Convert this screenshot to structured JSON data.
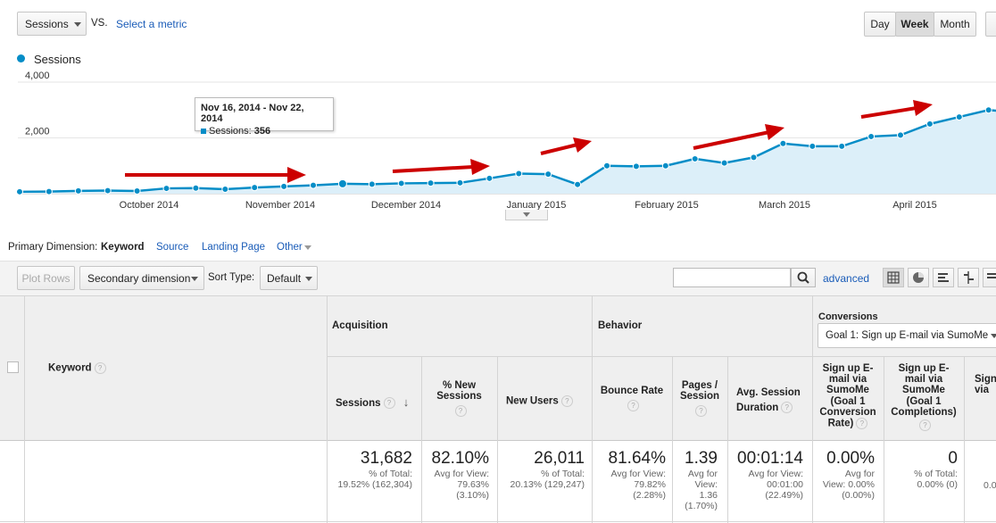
{
  "toolbar": {
    "metric_select": "Sessions",
    "vs_label": "VS.",
    "select_metric_link": "Select a metric",
    "period_buttons": [
      "Day",
      "Week",
      "Month"
    ],
    "active_period": "Week"
  },
  "legend": {
    "series_name": "Sessions",
    "color": "#058dc7"
  },
  "tooltip": {
    "range": "Nov 16, 2014 - Nov 22, 2014",
    "label": "Sessions:",
    "value": "356"
  },
  "chart_data": {
    "type": "area",
    "series": [
      {
        "name": "Sessions",
        "values": [
          70,
          75,
          100,
          110,
          95,
          190,
          200,
          160,
          220,
          260,
          300,
          356,
          340,
          370,
          380,
          390,
          550,
          720,
          700,
          330,
          1000,
          980,
          1000,
          1250,
          1100,
          1300,
          1800,
          1700,
          1700,
          2050,
          2100,
          2500,
          2750,
          3000,
          2900
        ]
      }
    ],
    "yticks": [
      "4,000",
      "2,000"
    ],
    "ylim": [
      0,
      4000
    ],
    "xtick_labels": [
      "October 2014",
      "November 2014",
      "December 2014",
      "January 2015",
      "February 2015",
      "March 2015",
      "April 2015"
    ],
    "grid": true
  },
  "dimension_bar": {
    "label": "Primary Dimension:",
    "items": [
      "Keyword",
      "Source",
      "Landing Page",
      "Other"
    ],
    "active": "Keyword"
  },
  "table_controls": {
    "plot_rows": "Plot Rows",
    "secondary_dimension": "Secondary dimension",
    "sort_type_label": "Sort Type:",
    "sort_type_value": "Default",
    "search_value": "",
    "advanced_link": "advanced"
  },
  "table": {
    "keyword_header": "Keyword",
    "groups": {
      "acquisition": "Acquisition",
      "behavior": "Behavior",
      "conversions": "Conversions",
      "goal_select": "Goal 1: Sign up E-mail via SumoMe"
    },
    "columns": {
      "sessions": "Sessions",
      "pct_new_1": "% New",
      "pct_new_2": "Sessions",
      "new_users": "New Users",
      "bounce_rate": "Bounce Rate",
      "pages_1": "Pages /",
      "pages_2": "Session",
      "avg_session_1": "Avg. Session",
      "avg_session_2": "Duration",
      "conv_rate": [
        "Sign up E-",
        "mail via",
        "SumoMe",
        "(Goal 1",
        "Conversion",
        "Rate)"
      ],
      "completions": [
        "Sign up E-",
        "mail via",
        "SumoMe",
        "(Goal 1",
        "Completions)"
      ],
      "partial": [
        "Sign",
        "via"
      ]
    },
    "totals": {
      "sessions": {
        "value": "31,682",
        "sub1": "% of Total:",
        "sub2": "19.52% (162,304)"
      },
      "pct_new": {
        "value": "82.10%",
        "sub1": "Avg for View:",
        "sub2": "79.63%",
        "sub3": "(3.10%)"
      },
      "new_users": {
        "value": "26,011",
        "sub1": "% of Total:",
        "sub2": "20.13% (129,247)"
      },
      "bounce": {
        "value": "81.64%",
        "sub1": "Avg for View:",
        "sub2": "79.82%",
        "sub3": "(2.28%)"
      },
      "pages": {
        "value": "1.39",
        "sub1": "Avg for",
        "sub2": "View:",
        "sub3": "1.36",
        "sub4": "(1.70%)"
      },
      "duration": {
        "value": "00:01:14",
        "sub1": "Avg for View:",
        "sub2": "00:01:00",
        "sub3": "(22.49%)"
      },
      "conv_rate": {
        "value": "0.00%",
        "sub1": "Avg for",
        "sub2": "View: 0.00%",
        "sub3": "(0.00%)"
      },
      "completions": {
        "value": "0",
        "sub1": "% of Total:",
        "sub2": "0.00% (0)"
      },
      "partial": {
        "value": "0.0"
      }
    }
  }
}
